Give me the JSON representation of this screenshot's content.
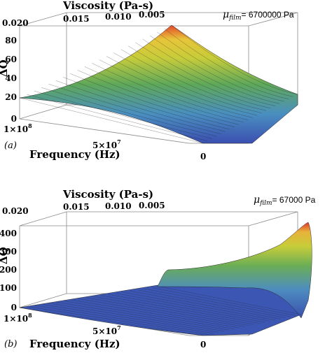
{
  "chart_data": [
    {
      "type": "surface",
      "panel_label": "(a)",
      "title": "",
      "parameter": {
        "symbol": "μ",
        "subscript": "film",
        "value": "= 6700000 Pa"
      },
      "xlabel": "Frequency (Hz)",
      "zlabel": "ΔQ",
      "top_axis_label": "Viscosity (Pa-s)",
      "viscosity_ticks": [
        "0.020",
        "0.015",
        "0.010",
        "0.005"
      ],
      "frequency_ticks": [
        {
          "mantissa": "1",
          "exponent": "8",
          "pre": "1×10"
        },
        {
          "mantissa": "5",
          "exponent": "7",
          "pre": "5×10"
        },
        {
          "label": "0"
        }
      ],
      "z_ticks": [
        "0",
        "20",
        "40",
        "60",
        "80"
      ],
      "z_range": [
        0,
        95
      ],
      "peak": {
        "frequency": 0,
        "viscosity": 0.0,
        "delta_q": 90
      },
      "colormap": [
        "#3b4fb0",
        "#4a8fc0",
        "#5fa85a",
        "#b8c93a",
        "#e8d23a",
        "#e35a2a"
      ],
      "grid": true
    },
    {
      "type": "surface",
      "panel_label": "(b)",
      "title": "",
      "parameter": {
        "symbol": "μ",
        "subscript": "film",
        "value": "= 67000 Pa"
      },
      "xlabel": "Frequency (Hz)",
      "zlabel": "ΔQ",
      "top_axis_label": "Viscosity (Pa-s)",
      "viscosity_ticks": [
        "0.020",
        "0.015",
        "0.010",
        "0.005"
      ],
      "frequency_ticks": [
        {
          "mantissa": "1",
          "exponent": "8",
          "pre": "1×10"
        },
        {
          "mantissa": "5",
          "exponent": "7",
          "pre": "5×10"
        },
        {
          "label": "0"
        }
      ],
      "z_ticks": [
        "0",
        "100",
        "200",
        "300",
        "400"
      ],
      "z_range": [
        0,
        460
      ],
      "peak": {
        "frequency": 0,
        "viscosity": 0.0,
        "delta_q": 440
      },
      "colormap": [
        "#3b4fb0",
        "#4a8fc0",
        "#5fa85a",
        "#b8c93a",
        "#e8d23a",
        "#e35a2a"
      ],
      "grid": true
    }
  ]
}
